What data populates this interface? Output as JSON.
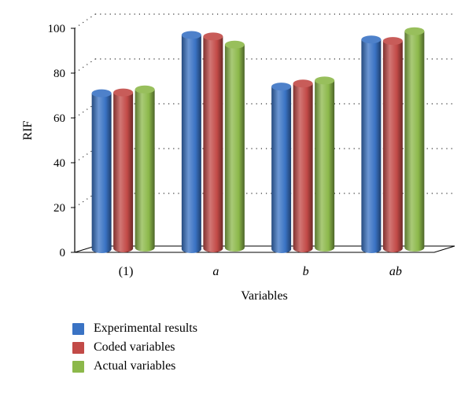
{
  "chart_data": {
    "type": "bar",
    "title": "",
    "xlabel": "Variables",
    "ylabel": "RIF",
    "ylim": [
      0,
      100
    ],
    "yticks": [
      "0",
      "20",
      "40",
      "60",
      "80",
      "100"
    ],
    "categories": [
      "(1)",
      "a",
      "b",
      "ab"
    ],
    "italic_categories": [
      false,
      true,
      true,
      true
    ],
    "grid": "dotted horizontal",
    "legend_position": "bottom",
    "series": [
      {
        "name": "Experimental results",
        "color": "#3a73c4",
        "values": [
          71,
          97,
          74,
          95
        ]
      },
      {
        "name": "Coded variables",
        "color": "#c24a47",
        "values": [
          71,
          96,
          75,
          94
        ]
      },
      {
        "name": "Actual variables",
        "color": "#8cb84a",
        "values": [
          72,
          92,
          76,
          98
        ]
      }
    ]
  }
}
